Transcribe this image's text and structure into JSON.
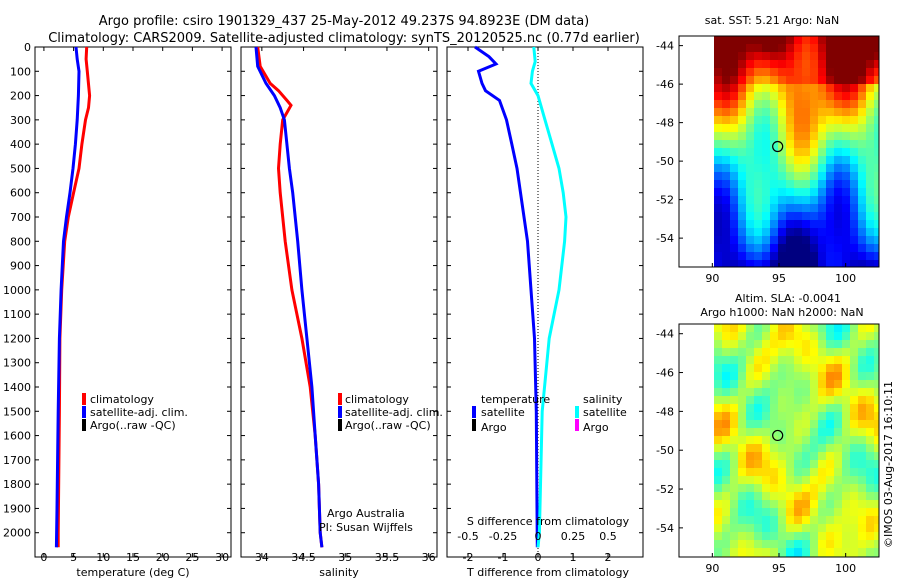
{
  "header": {
    "line1": "Argo profile: csiro 1901329_437 25-May-2012 49.237S 94.8923E (DM data)",
    "line2": "Climatology: CARS2009. Satellite-adjusted climatology: synTS_20120525.nc (0.77d earlier)"
  },
  "colors": {
    "climatology": "#ff0000",
    "satellite": "#0000ff",
    "argo": "#000000",
    "salinity_satellite": "#00ffff",
    "salinity_argo": "#ff00ff"
  },
  "depth_ticks": [
    "0",
    "100",
    "200",
    "300",
    "400",
    "500",
    "600",
    "700",
    "800",
    "900",
    "1000",
    "1100",
    "1200",
    "1300",
    "1400",
    "1500",
    "1600",
    "1700",
    "1800",
    "1900",
    "2000"
  ],
  "depth_range": [
    0,
    2100
  ],
  "temperature": {
    "xlabel": "temperature (deg C)",
    "xticks": [
      "0",
      "5",
      "10",
      "15",
      "20",
      "25",
      "30"
    ],
    "xlim": [
      -1.5,
      31.5
    ],
    "legend": [
      "climatology",
      "satellite-adj. clim.",
      "Argo(..raw -QC)"
    ],
    "climatology": [
      [
        7.2,
        0
      ],
      [
        7.1,
        50
      ],
      [
        7.3,
        100
      ],
      [
        7.7,
        200
      ],
      [
        7.5,
        250
      ],
      [
        7.0,
        300
      ],
      [
        6.4,
        400
      ],
      [
        5.9,
        500
      ],
      [
        5.0,
        600
      ],
      [
        4.1,
        700
      ],
      [
        3.5,
        800
      ],
      [
        3.0,
        1000
      ],
      [
        2.7,
        1200
      ],
      [
        2.6,
        1500
      ],
      [
        2.4,
        2000
      ],
      [
        2.4,
        2060
      ]
    ],
    "satellite": [
      [
        5.4,
        0
      ],
      [
        5.6,
        50
      ],
      [
        5.9,
        100
      ],
      [
        5.8,
        200
      ],
      [
        5.6,
        300
      ],
      [
        5.3,
        400
      ],
      [
        4.9,
        500
      ],
      [
        4.4,
        600
      ],
      [
        3.8,
        700
      ],
      [
        3.3,
        800
      ],
      [
        2.9,
        1000
      ],
      [
        2.6,
        1200
      ],
      [
        2.4,
        1500
      ],
      [
        2.2,
        1900
      ],
      [
        2.1,
        2060
      ]
    ]
  },
  "salinity": {
    "xlabel": "salinity",
    "xticks": [
      "34",
      "34.5",
      "35",
      "35.5",
      "36"
    ],
    "xlim": [
      33.75,
      36.1
    ],
    "legend": [
      "climatology",
      "satellite-adj. clim.",
      "Argo(..raw -QC)"
    ],
    "annotation": [
      "Argo Australia",
      "PI: Susan Wijffels"
    ],
    "climatology": [
      [
        33.95,
        0
      ],
      [
        33.98,
        80
      ],
      [
        34.1,
        150
      ],
      [
        34.2,
        180
      ],
      [
        34.3,
        220
      ],
      [
        34.35,
        240
      ],
      [
        34.3,
        270
      ],
      [
        34.25,
        300
      ],
      [
        34.22,
        400
      ],
      [
        34.2,
        500
      ],
      [
        34.22,
        600
      ],
      [
        34.28,
        800
      ],
      [
        34.36,
        1000
      ],
      [
        34.48,
        1200
      ],
      [
        34.58,
        1400
      ],
      [
        34.64,
        1600
      ],
      [
        34.68,
        1800
      ],
      [
        34.7,
        2000
      ],
      [
        34.72,
        2060
      ]
    ],
    "satellite": [
      [
        33.93,
        0
      ],
      [
        33.95,
        80
      ],
      [
        34.05,
        150
      ],
      [
        34.15,
        200
      ],
      [
        34.22,
        250
      ],
      [
        34.27,
        300
      ],
      [
        34.3,
        400
      ],
      [
        34.33,
        500
      ],
      [
        34.37,
        600
      ],
      [
        34.43,
        800
      ],
      [
        34.48,
        1000
      ],
      [
        34.54,
        1200
      ],
      [
        34.6,
        1400
      ],
      [
        34.64,
        1600
      ],
      [
        34.68,
        1800
      ],
      [
        34.7,
        2000
      ],
      [
        34.72,
        2060
      ]
    ]
  },
  "difference": {
    "xlabel": "T difference from climatology",
    "top_label": "S difference from climatology",
    "xticks_T": [
      "-2",
      "-1",
      "0",
      "1",
      "2"
    ],
    "xticks_S": [
      "-0.5",
      "-0.25",
      "0",
      "0.25",
      "0.5"
    ],
    "xlim_T": [
      -2.6,
      3.0
    ],
    "legend_temperature": [
      "temperature",
      "satellite",
      "Argo"
    ],
    "legend_salinity": [
      "salinity",
      "satellite",
      "Argo"
    ],
    "T_diff": [
      [
        -1.8,
        0
      ],
      [
        -1.4,
        40
      ],
      [
        -1.2,
        70
      ],
      [
        -1.7,
        100
      ],
      [
        -1.6,
        150
      ],
      [
        -1.5,
        180
      ],
      [
        -1.1,
        220
      ],
      [
        -1.0,
        260
      ],
      [
        -0.9,
        300
      ],
      [
        -0.75,
        400
      ],
      [
        -0.6,
        500
      ],
      [
        -0.5,
        600
      ],
      [
        -0.4,
        700
      ],
      [
        -0.3,
        800
      ],
      [
        -0.2,
        1000
      ],
      [
        -0.1,
        1200
      ],
      [
        -0.05,
        1500
      ],
      [
        -0.03,
        1900
      ],
      [
        -0.02,
        2060
      ]
    ],
    "S_diff": [
      [
        -0.03,
        0
      ],
      [
        -0.02,
        60
      ],
      [
        -0.04,
        100
      ],
      [
        -0.05,
        150
      ],
      [
        0.0,
        200
      ],
      [
        0.05,
        300
      ],
      [
        0.1,
        400
      ],
      [
        0.15,
        500
      ],
      [
        0.18,
        600
      ],
      [
        0.2,
        700
      ],
      [
        0.19,
        800
      ],
      [
        0.15,
        1000
      ],
      [
        0.08,
        1200
      ],
      [
        0.03,
        1500
      ],
      [
        0.01,
        2000
      ],
      [
        0.0,
        2060
      ]
    ]
  },
  "sst_map": {
    "title": "sat. SST: 5.21  Argo: NaN",
    "yticks": [
      "-44",
      "-46",
      "-48",
      "-50",
      "-52",
      "-54"
    ],
    "xticks": [
      "90",
      "95",
      "100"
    ],
    "lat_range": [
      -43.5,
      -55.5
    ],
    "lon_range": [
      87.5,
      102.5
    ],
    "float_lat": -49.24,
    "float_lon": 94.9
  },
  "sla_map": {
    "title1": "Altim. SLA: -0.0041",
    "title2": "Argo h1000: NaN h2000: NaN",
    "yticks": [
      "-44",
      "-46",
      "-48",
      "-50",
      "-52",
      "-54"
    ],
    "xticks": [
      "90",
      "95",
      "100"
    ],
    "lat_range": [
      -43.5,
      -55.5
    ],
    "lon_range": [
      87.5,
      102.5
    ],
    "float_lat": -49.24,
    "float_lon": 94.9
  },
  "credit": "©IMOS 03-Aug-2017 16:10:11"
}
